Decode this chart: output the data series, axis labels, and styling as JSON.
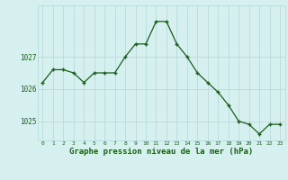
{
  "x": [
    0,
    1,
    2,
    3,
    4,
    5,
    6,
    7,
    8,
    9,
    10,
    11,
    12,
    13,
    14,
    15,
    16,
    17,
    18,
    19,
    20,
    21,
    22,
    23
  ],
  "y": [
    1026.2,
    1026.6,
    1026.6,
    1026.5,
    1026.2,
    1026.5,
    1026.5,
    1026.5,
    1027.0,
    1027.4,
    1027.4,
    1028.1,
    1028.1,
    1027.4,
    1027.0,
    1026.5,
    1026.2,
    1025.9,
    1025.5,
    1025.0,
    1024.9,
    1024.6,
    1024.9,
    1024.9
  ],
  "line_color": "#1a5c1a",
  "marker_color": "#1a5c1a",
  "bg_color": "#d6f0f0",
  "grid_color": "#b0d8d8",
  "xlabel": "Graphe pression niveau de la mer (hPa)",
  "xlabel_color": "#1a5c1a",
  "tick_color": "#1a5c1a",
  "ylim": [
    1024.4,
    1028.6
  ],
  "xlim": [
    -0.5,
    23.5
  ],
  "figsize": [
    3.2,
    2.0
  ],
  "dpi": 100
}
